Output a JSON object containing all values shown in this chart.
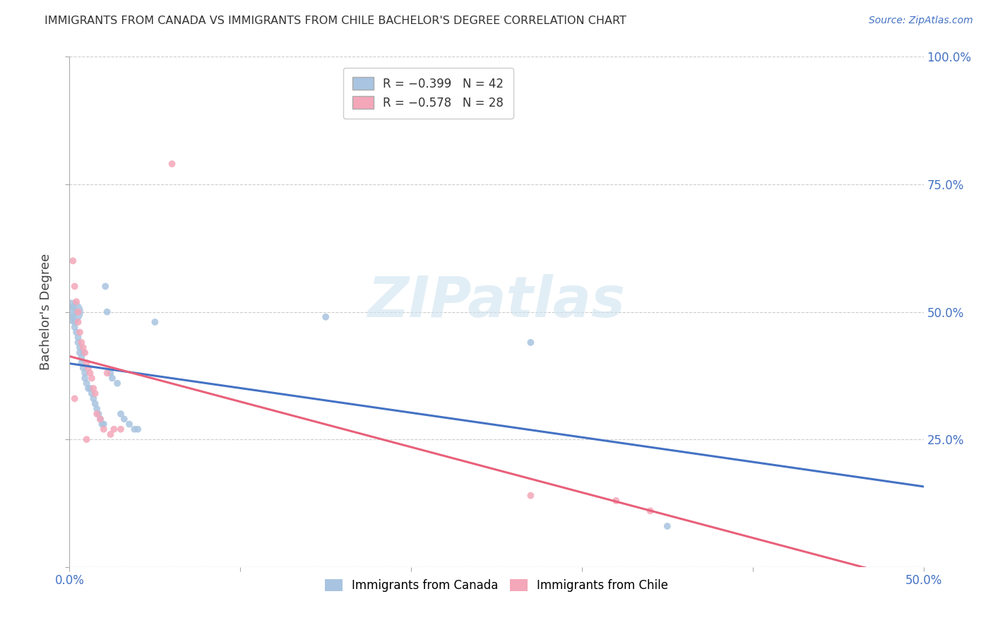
{
  "title": "IMMIGRANTS FROM CANADA VS IMMIGRANTS FROM CHILE BACHELOR'S DEGREE CORRELATION CHART",
  "source": "Source: ZipAtlas.com",
  "xlim": [
    0.0,
    0.5
  ],
  "ylim": [
    0.0,
    1.0
  ],
  "ylabel": "Bachelor's Degree",
  "canada_color": "#a8c4e0",
  "canada_line_color": "#4472c4",
  "chile_color": "#f4a7b9",
  "chile_line_color": "#e8607a",
  "canada_R": -0.399,
  "canada_N": 42,
  "chile_R": -0.578,
  "chile_N": 28,
  "watermark_text": "ZIPatlas",
  "background_color": "#ffffff",
  "grid_color": "#cccccc",
  "canada_points": [
    [
      0.001,
      0.5
    ],
    [
      0.002,
      0.49
    ],
    [
      0.002,
      0.51
    ],
    [
      0.003,
      0.48
    ],
    [
      0.003,
      0.47
    ],
    [
      0.004,
      0.5
    ],
    [
      0.004,
      0.46
    ],
    [
      0.005,
      0.45
    ],
    [
      0.005,
      0.44
    ],
    [
      0.006,
      0.43
    ],
    [
      0.006,
      0.42
    ],
    [
      0.007,
      0.41
    ],
    [
      0.007,
      0.4
    ],
    [
      0.008,
      0.42
    ],
    [
      0.008,
      0.39
    ],
    [
      0.009,
      0.38
    ],
    [
      0.009,
      0.37
    ],
    [
      0.01,
      0.36
    ],
    [
      0.011,
      0.35
    ],
    [
      0.012,
      0.35
    ],
    [
      0.013,
      0.34
    ],
    [
      0.014,
      0.33
    ],
    [
      0.015,
      0.32
    ],
    [
      0.016,
      0.31
    ],
    [
      0.017,
      0.3
    ],
    [
      0.018,
      0.29
    ],
    [
      0.019,
      0.28
    ],
    [
      0.02,
      0.28
    ],
    [
      0.021,
      0.55
    ],
    [
      0.022,
      0.5
    ],
    [
      0.024,
      0.38
    ],
    [
      0.025,
      0.37
    ],
    [
      0.028,
      0.36
    ],
    [
      0.03,
      0.3
    ],
    [
      0.032,
      0.29
    ],
    [
      0.035,
      0.28
    ],
    [
      0.038,
      0.27
    ],
    [
      0.04,
      0.27
    ],
    [
      0.05,
      0.48
    ],
    [
      0.15,
      0.49
    ],
    [
      0.27,
      0.44
    ],
    [
      0.35,
      0.08
    ]
  ],
  "canada_sizes": [
    600,
    50,
    50,
    50,
    50,
    50,
    50,
    50,
    50,
    50,
    50,
    50,
    50,
    50,
    50,
    50,
    50,
    50,
    50,
    50,
    50,
    50,
    50,
    50,
    50,
    50,
    50,
    50,
    50,
    50,
    50,
    50,
    50,
    50,
    50,
    50,
    50,
    50,
    50,
    50,
    50,
    50
  ],
  "chile_points": [
    [
      0.002,
      0.6
    ],
    [
      0.003,
      0.55
    ],
    [
      0.004,
      0.52
    ],
    [
      0.005,
      0.5
    ],
    [
      0.005,
      0.48
    ],
    [
      0.006,
      0.46
    ],
    [
      0.007,
      0.44
    ],
    [
      0.008,
      0.43
    ],
    [
      0.009,
      0.42
    ],
    [
      0.01,
      0.4
    ],
    [
      0.011,
      0.39
    ],
    [
      0.012,
      0.38
    ],
    [
      0.013,
      0.37
    ],
    [
      0.014,
      0.35
    ],
    [
      0.015,
      0.34
    ],
    [
      0.016,
      0.3
    ],
    [
      0.018,
      0.29
    ],
    [
      0.02,
      0.27
    ],
    [
      0.022,
      0.38
    ],
    [
      0.024,
      0.26
    ],
    [
      0.026,
      0.27
    ],
    [
      0.03,
      0.27
    ],
    [
      0.06,
      0.79
    ],
    [
      0.27,
      0.14
    ],
    [
      0.32,
      0.13
    ],
    [
      0.34,
      0.11
    ],
    [
      0.003,
      0.33
    ],
    [
      0.01,
      0.25
    ]
  ],
  "chile_sizes": [
    50,
    50,
    50,
    50,
    50,
    50,
    50,
    50,
    50,
    50,
    50,
    50,
    50,
    50,
    50,
    50,
    50,
    50,
    50,
    50,
    50,
    50,
    50,
    50,
    50,
    50,
    50,
    50
  ]
}
